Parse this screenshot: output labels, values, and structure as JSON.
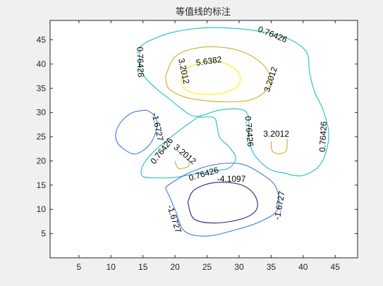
{
  "chart_data": {
    "type": "contour",
    "title": "等值线的标注",
    "xlabel": "",
    "ylabel": "",
    "xlim": [
      0.5,
      48.5
    ],
    "ylim": [
      0,
      49
    ],
    "x_ticks": [
      5,
      10,
      15,
      20,
      25,
      30,
      35,
      40,
      45
    ],
    "y_ticks": [
      5,
      10,
      15,
      20,
      25,
      30,
      35,
      40,
      45
    ],
    "grid": false,
    "legend": "none",
    "colormap": "parula",
    "contour_levels": [
      -4.1097,
      -1.6727,
      0.76426,
      3.2012,
      5.6382
    ],
    "level_colors": {
      "-4.1097": "#2b1d8a",
      "-1.6727": "#3f77e0",
      "0.76426": "#1fbfc0",
      "3.2012": "#c8b02c",
      "5.6382": "#ffee00"
    },
    "series": [
      {
        "level": 5.6382,
        "points": [
          [
            21,
            37
          ],
          [
            22,
            39.2
          ],
          [
            25,
            40.5
          ],
          [
            28,
            40
          ],
          [
            30,
            38
          ],
          [
            29.8,
            35.5
          ],
          [
            27.5,
            34
          ],
          [
            24,
            33.8
          ],
          [
            21.5,
            34.8
          ],
          [
            21,
            37
          ]
        ]
      },
      {
        "level": 3.2012,
        "points": [
          [
            18.5,
            37.5
          ],
          [
            20,
            41.5
          ],
          [
            23,
            43.2
          ],
          [
            27,
            43.5
          ],
          [
            31,
            42.3
          ],
          [
            34,
            39.5
          ],
          [
            35,
            36.2
          ],
          [
            33.8,
            34
          ],
          [
            31.8,
            32.6
          ],
          [
            29,
            32.2
          ],
          [
            25,
            32.4
          ],
          [
            21.5,
            33.2
          ],
          [
            19,
            35
          ],
          [
            18.5,
            37.5
          ]
        ]
      },
      {
        "level": 0.76426,
        "points": [
          [
            14.5,
            43.5
          ],
          [
            16,
            44.8
          ],
          [
            19.5,
            46.5
          ],
          [
            25,
            47.5
          ],
          [
            32,
            47
          ],
          [
            37.5,
            45.3
          ],
          [
            40.5,
            42.5
          ],
          [
            41,
            38.2
          ],
          [
            41.8,
            34.2
          ],
          [
            43.2,
            30.2
          ],
          [
            44,
            25
          ],
          [
            42.8,
            19.5
          ],
          [
            40,
            17
          ],
          [
            37,
            17.5
          ],
          [
            34.5,
            18.5
          ],
          [
            32.2,
            21.7
          ],
          [
            31.5,
            25.6
          ],
          [
            31.5,
            29
          ],
          [
            30.4,
            30.6
          ],
          [
            27,
            30.5
          ],
          [
            23.2,
            29.2
          ],
          [
            20.8,
            31
          ],
          [
            19.4,
            32.5
          ],
          [
            17,
            35
          ],
          [
            15.2,
            37.5
          ],
          [
            14.5,
            40
          ],
          [
            14.5,
            43.5
          ]
        ]
      },
      {
        "level": 0.76426,
        "points": [
          [
            23.5,
            29
          ],
          [
            21,
            26.6
          ],
          [
            18,
            23.5
          ],
          [
            16,
            21
          ],
          [
            14.8,
            18.5
          ],
          [
            15,
            16.8
          ],
          [
            17,
            16.5
          ],
          [
            20,
            16.6
          ],
          [
            23,
            17.3
          ],
          [
            26.5,
            18
          ],
          [
            28.5,
            18.6
          ],
          [
            29.5,
            20.6
          ],
          [
            28.5,
            22.8
          ],
          [
            27,
            24.8
          ],
          [
            26.5,
            27.5
          ],
          [
            26,
            29
          ],
          [
            23.5,
            29
          ]
        ]
      },
      {
        "level": 3.2012,
        "points": [
          [
            35,
            24
          ],
          [
            35.2,
            22
          ],
          [
            36.4,
            21.5
          ],
          [
            37.4,
            22.2
          ],
          [
            37.5,
            24.6
          ]
        ]
      },
      {
        "level": 3.2012,
        "points": [
          [
            20,
            20
          ],
          [
            20.5,
            18.5
          ],
          [
            22,
            18.8
          ],
          [
            22.2,
            20
          ]
        ]
      },
      {
        "level": -1.6727,
        "points": [
          [
            15.5,
            30.5
          ],
          [
            16.6,
            29.6
          ],
          [
            17.2,
            27.8
          ],
          [
            16.8,
            25.2
          ],
          [
            15.8,
            23
          ],
          [
            14,
            21.5
          ],
          [
            12.5,
            22
          ],
          [
            11,
            23.8
          ],
          [
            10.8,
            26
          ],
          [
            11.8,
            28.4
          ],
          [
            13.4,
            30
          ],
          [
            15.5,
            30.5
          ]
        ]
      },
      {
        "level": -1.6727,
        "points": [
          [
            18.5,
            14.5
          ],
          [
            20,
            10
          ],
          [
            21.5,
            5.5
          ],
          [
            25,
            4.5
          ],
          [
            29.5,
            5.8
          ],
          [
            33.5,
            7.6
          ],
          [
            36,
            10
          ],
          [
            35.8,
            14.5
          ],
          [
            33.5,
            17.3
          ],
          [
            30.2,
            19.4
          ],
          [
            26,
            19.2
          ],
          [
            22.3,
            17.6
          ],
          [
            19.5,
            15.5
          ],
          [
            18.5,
            14.5
          ]
        ]
      },
      {
        "level": -4.1097,
        "points": [
          [
            22,
            11.5
          ],
          [
            23,
            14
          ],
          [
            26,
            15.5
          ],
          [
            30,
            15.2
          ],
          [
            32.3,
            13.2
          ],
          [
            32.8,
            10.2
          ],
          [
            30.8,
            8.2
          ],
          [
            26.5,
            7.2
          ],
          [
            23,
            8
          ],
          [
            22,
            11.5
          ]
        ]
      }
    ],
    "labels": [
      {
        "text": "5.6382",
        "x": 25.3,
        "y": 40.5,
        "rotation": -8
      },
      {
        "text": "3.2012",
        "x": 21.3,
        "y": 38.5,
        "rotation": 78
      },
      {
        "text": "3.2012",
        "x": 35.0,
        "y": 36.8,
        "rotation": -72
      },
      {
        "text": "0.76426",
        "x": 35.2,
        "y": 46.0,
        "rotation": 22
      },
      {
        "text": "0.76426",
        "x": 14.5,
        "y": 40.4,
        "rotation": 88
      },
      {
        "text": "0.76426",
        "x": 43.2,
        "y": 25.0,
        "rotation": -87
      },
      {
        "text": "0.76426",
        "x": 31.5,
        "y": 26.1,
        "rotation": 85
      },
      {
        "text": "0.76426",
        "x": 18.0,
        "y": 22.0,
        "rotation": -52
      },
      {
        "text": "0.76426",
        "x": 24.5,
        "y": 17.2,
        "rotation": -16
      },
      {
        "text": "3.2012",
        "x": 35.8,
        "y": 25.5,
        "rotation": 0
      },
      {
        "text": "3.2012",
        "x": 21.5,
        "y": 21.3,
        "rotation": 40
      },
      {
        "text": "-1.6727",
        "x": 17.2,
        "y": 27.0,
        "rotation": 78
      },
      {
        "text": "-1.6727",
        "x": 19.8,
        "y": 8.0,
        "rotation": 72
      },
      {
        "text": "-1.6727",
        "x": 36.4,
        "y": 10.8,
        "rotation": -80
      },
      {
        "text": "-4.1097",
        "x": 28.8,
        "y": 16.2,
        "rotation": 0
      }
    ]
  }
}
